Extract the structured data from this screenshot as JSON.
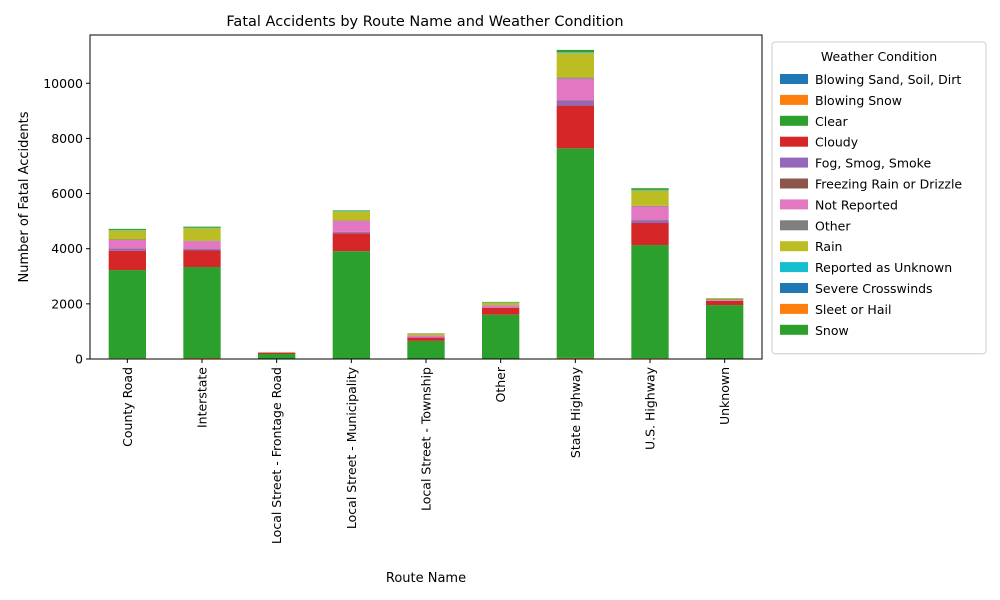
{
  "chart_data": {
    "type": "bar",
    "stacked": true,
    "title": "Fatal Accidents by Route Name and Weather Condition",
    "xlabel": "Route Name",
    "ylabel": "Number of Fatal Accidents",
    "ylim": [
      0,
      11750
    ],
    "yticks": [
      0,
      2000,
      4000,
      6000,
      8000,
      10000
    ],
    "grid": false,
    "legend_title": "Weather Condition",
    "legend_position": "outside-right-top",
    "categories": [
      "County Road",
      "Interstate",
      "Local Street - Frontage Road",
      "Local Street - Municipality",
      "Local Street - Township",
      "Other",
      "State Highway",
      "U.S. Highway",
      "Unknown"
    ],
    "series": [
      {
        "name": "Blowing Sand, Soil, Dirt",
        "color": "#1f77b4",
        "values": [
          5,
          5,
          0,
          3,
          1,
          2,
          10,
          7,
          2
        ]
      },
      {
        "name": "Blowing Snow",
        "color": "#ff7f0e",
        "values": [
          20,
          30,
          1,
          8,
          5,
          5,
          30,
          25,
          3
        ]
      },
      {
        "name": "Clear",
        "color": "#2ca02c",
        "values": [
          3200,
          3300,
          180,
          3900,
          650,
          1600,
          7600,
          4100,
          1950
        ]
      },
      {
        "name": "Cloudy",
        "color": "#d62728",
        "values": [
          700,
          600,
          40,
          650,
          120,
          250,
          1550,
          800,
          150
        ]
      },
      {
        "name": "Fog, Smog, Smoke",
        "color": "#9467bd",
        "values": [
          80,
          50,
          2,
          40,
          15,
          20,
          170,
          100,
          10
        ]
      },
      {
        "name": "Freezing Rain or Drizzle",
        "color": "#8c564b",
        "values": [
          10,
          15,
          1,
          8,
          3,
          5,
          25,
          20,
          2
        ]
      },
      {
        "name": "Not Reported",
        "color": "#e377c2",
        "values": [
          300,
          270,
          10,
          400,
          60,
          60,
          780,
          480,
          20
        ]
      },
      {
        "name": "Other",
        "color": "#7f7f7f",
        "values": [
          20,
          20,
          2,
          15,
          5,
          10,
          40,
          25,
          20
        ]
      },
      {
        "name": "Rain",
        "color": "#bcbd22",
        "values": [
          320,
          450,
          15,
          320,
          60,
          90,
          880,
          550,
          40
        ]
      },
      {
        "name": "Reported as Unknown",
        "color": "#17becf",
        "values": [
          15,
          10,
          1,
          10,
          3,
          5,
          25,
          15,
          5
        ]
      },
      {
        "name": "Severe Crosswinds",
        "color": "#1f77b4",
        "values": [
          5,
          5,
          0,
          3,
          1,
          2,
          10,
          7,
          2
        ]
      },
      {
        "name": "Sleet or Hail",
        "color": "#ff7f0e",
        "values": [
          5,
          5,
          0,
          3,
          1,
          2,
          10,
          5,
          1
        ]
      },
      {
        "name": "Snow",
        "color": "#2ca02c",
        "values": [
          40,
          40,
          3,
          30,
          10,
          20,
          80,
          60,
          5
        ]
      }
    ]
  }
}
